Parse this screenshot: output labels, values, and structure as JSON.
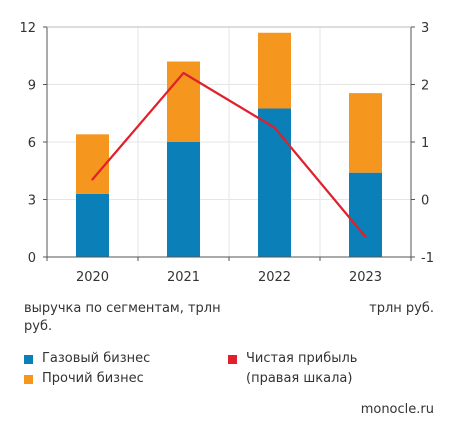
{
  "chart_data": {
    "type": "bar",
    "stacked": true,
    "categories": [
      "2020",
      "2021",
      "2022",
      "2023"
    ],
    "series": [
      {
        "name": "Газовый бизнес",
        "values": [
          3.3,
          6.0,
          7.75,
          4.4
        ],
        "color": "#0a7fb8",
        "axis": "left"
      },
      {
        "name": "Прочий бизнес",
        "values": [
          3.1,
          4.2,
          3.95,
          4.15
        ],
        "color": "#f5961e",
        "axis": "left"
      }
    ],
    "line_series": [
      {
        "name": "Чистая прибыль",
        "sublabel": "(правая шкала)",
        "values": [
          0.35,
          2.2,
          1.25,
          -0.65
        ],
        "color": "#e0202a",
        "axis": "right"
      }
    ],
    "ylim": [
      0,
      12
    ],
    "yticks": [
      "0",
      "3",
      "6",
      "9",
      "12"
    ],
    "y2lim": [
      -1,
      3
    ],
    "y2ticks": [
      "-1",
      "0",
      "1",
      "2",
      "3"
    ],
    "ylabel": "выручка по сегментам, трлн руб.",
    "y2label": "трлн руб.",
    "grid": true,
    "legend_position": "bottom"
  },
  "source": "monocle.ru"
}
